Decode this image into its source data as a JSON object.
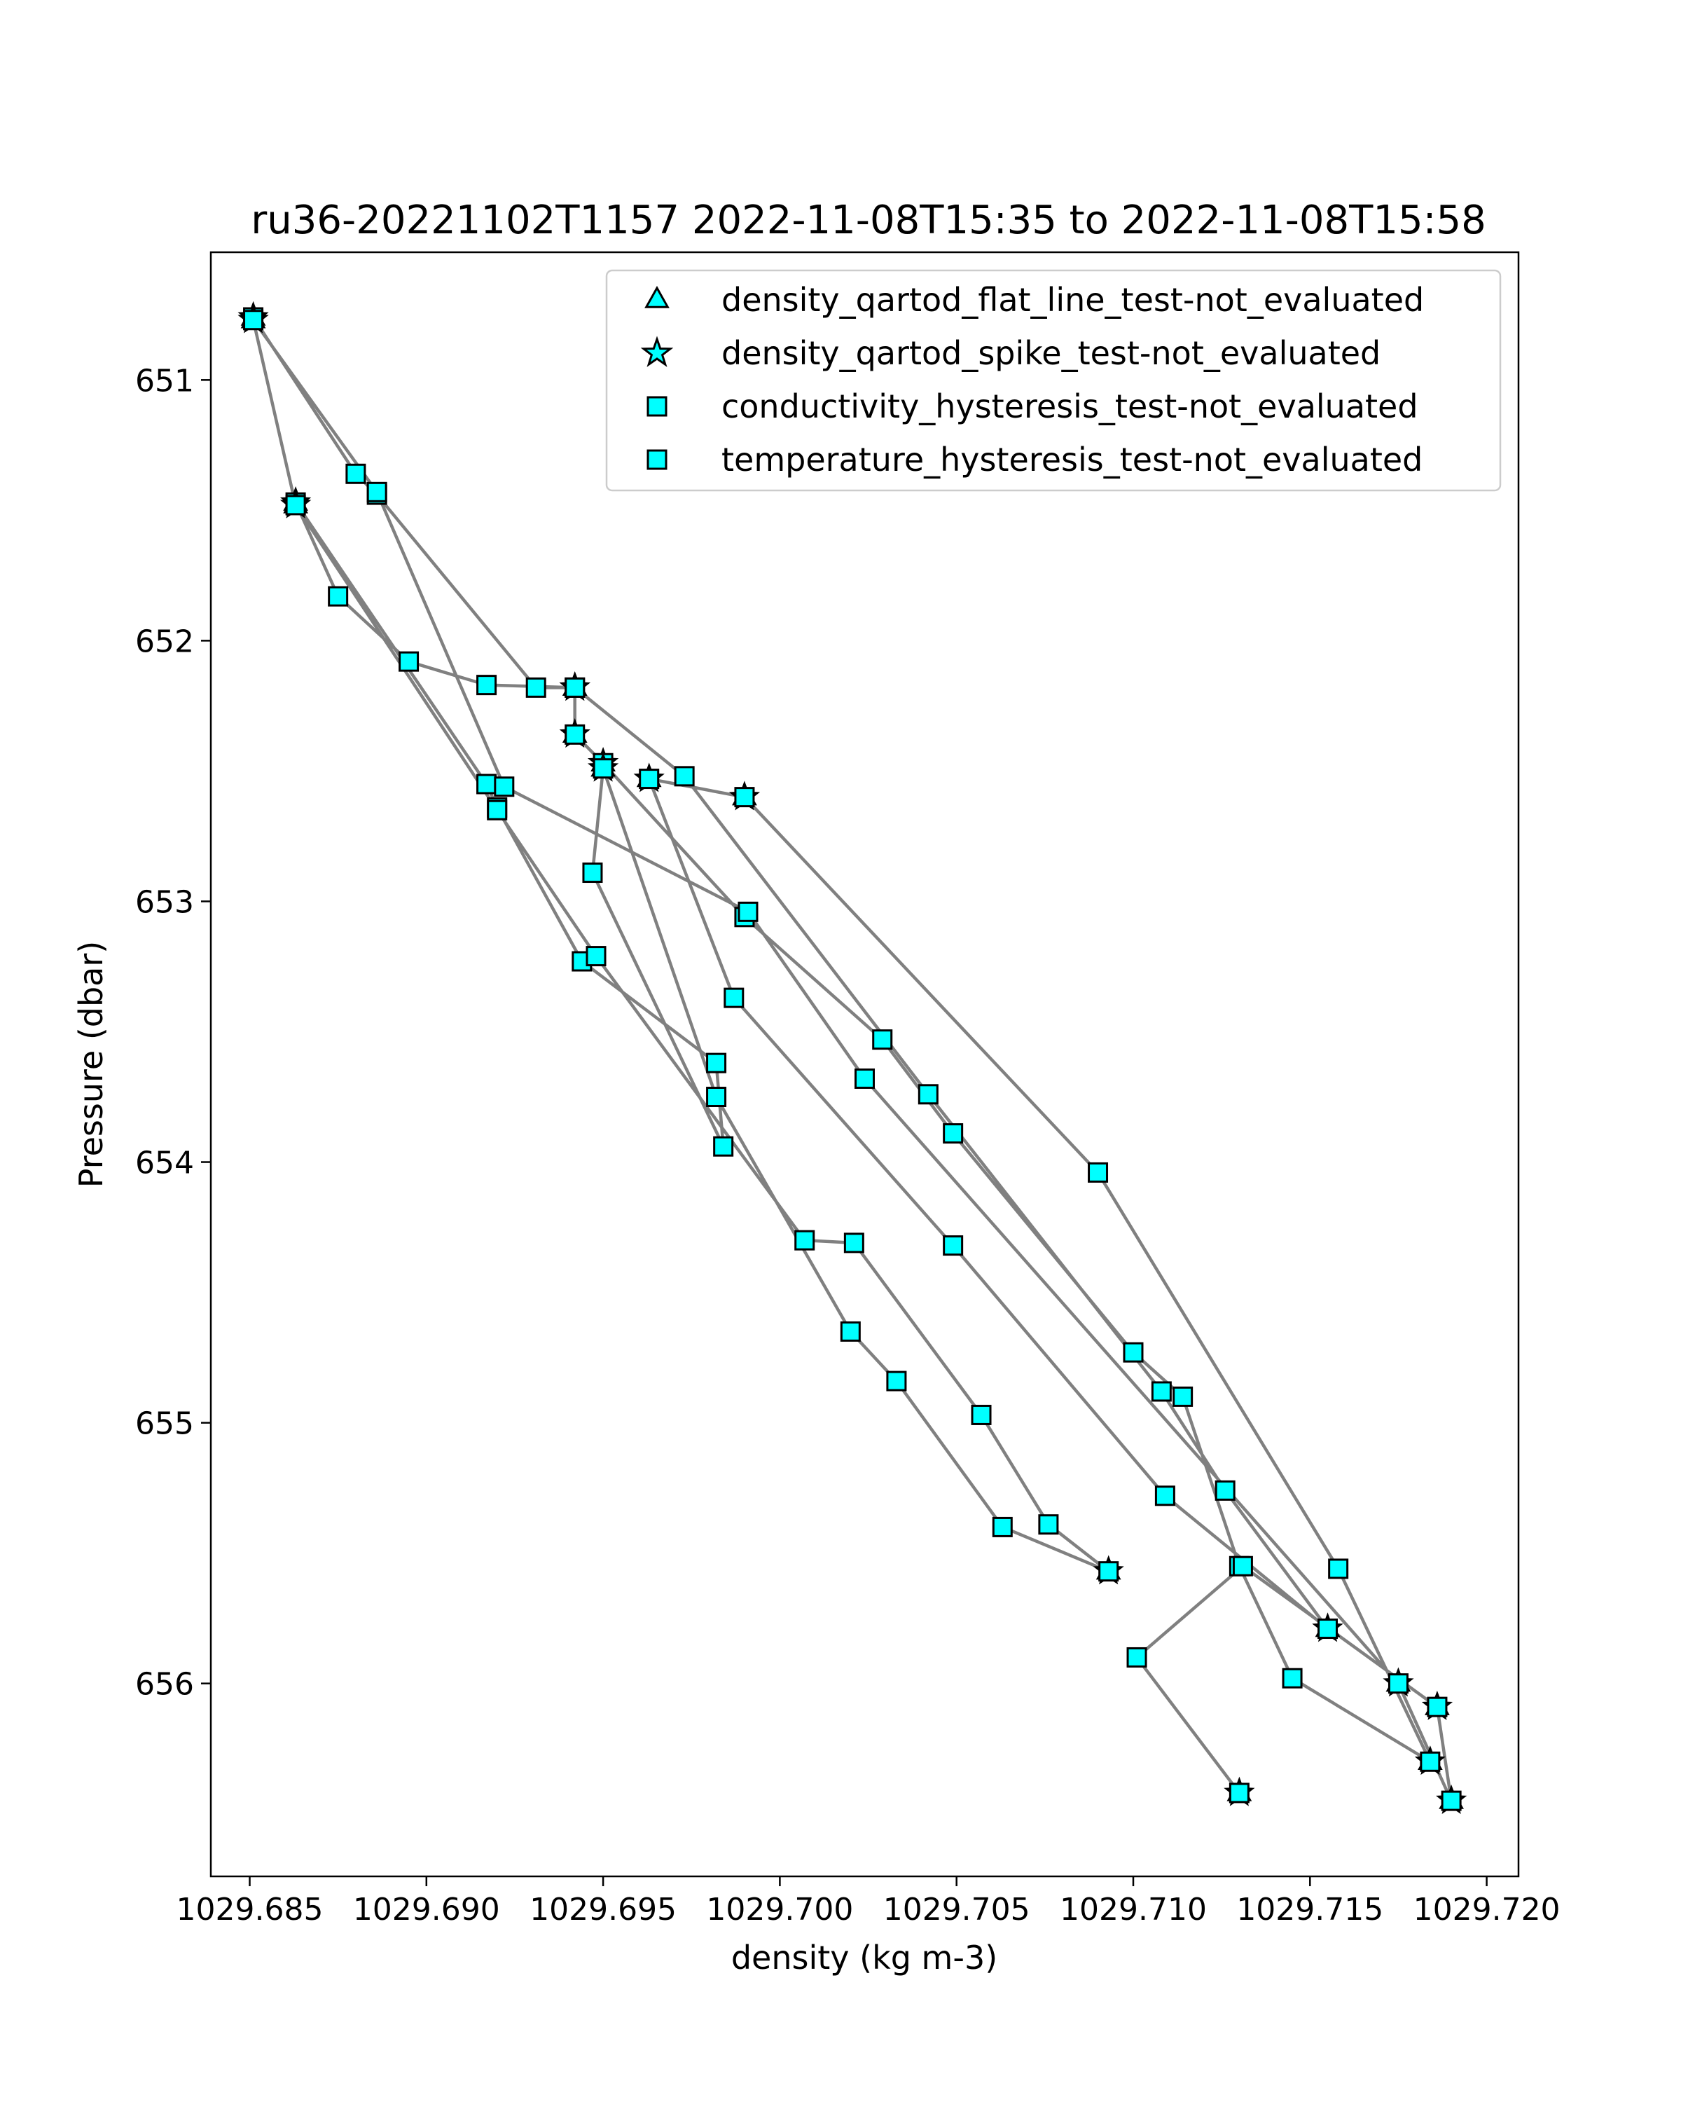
{
  "chart_data": {
    "type": "scatter",
    "title": "ru36-20221102T1157 2022-11-08T15:35 to 2022-11-08T15:58",
    "xlabel": "density (kg m-3)",
    "ylabel": "Pressure (dbar)",
    "xlim": [
      1029.6839,
      1029.7209
    ],
    "ylim": [
      656.74,
      650.51
    ],
    "y_inverted": true,
    "grid": false,
    "legend_position": "upper-right",
    "xticks": [
      1029.685,
      1029.69,
      1029.695,
      1029.7,
      1029.705,
      1029.71,
      1029.715,
      1029.72
    ],
    "xtick_labels": [
      "1029.685",
      "1029.690",
      "1029.695",
      "1029.700",
      "1029.705",
      "1029.710",
      "1029.715",
      "1029.720"
    ],
    "yticks": [
      651,
      652,
      653,
      654,
      655,
      656
    ],
    "ytick_labels": [
      "651",
      "652",
      "653",
      "654",
      "655",
      "656"
    ],
    "line_color": "#808080",
    "marker_fill": "#00ffff",
    "marker_edge": "#000000",
    "legend": [
      {
        "label": "density_qartod_flat_line_test-not_evaluated",
        "marker": "triangle"
      },
      {
        "label": "density_qartod_spike_test-not_evaluated",
        "marker": "star"
      },
      {
        "label": "conductivity_hysteresis_test-not_evaluated",
        "marker": "square"
      },
      {
        "label": "temperature_hysteresis_test-not_evaluated",
        "marker": "square"
      }
    ],
    "profile": [
      {
        "x": 1029.6851,
        "y": 650.76,
        "pt": true
      },
      {
        "x": 1029.688,
        "y": 651.36
      },
      {
        "x": 1029.6886,
        "y": 651.44
      },
      {
        "x": 1029.6931,
        "y": 652.18
      },
      {
        "x": 1029.6942,
        "y": 652.18,
        "pt": true
      },
      {
        "x": 1029.6942,
        "y": 652.36,
        "pt": true
      },
      {
        "x": 1029.695,
        "y": 652.47,
        "pt": true
      },
      {
        "x": 1029.699,
        "y": 653.06
      },
      {
        "x": 1029.7029,
        "y": 653.53
      },
      {
        "x": 1029.7049,
        "y": 653.89
      },
      {
        "x": 1029.71,
        "y": 654.73
      },
      {
        "x": 1029.7114,
        "y": 654.9
      },
      {
        "x": 1029.713,
        "y": 655.55
      },
      {
        "x": 1029.7145,
        "y": 655.98
      },
      {
        "x": 1029.7184,
        "y": 656.3,
        "pt": true
      },
      {
        "x": 1029.7158,
        "y": 655.56
      },
      {
        "x": 1029.709,
        "y": 654.04
      },
      {
        "x": 1029.699,
        "y": 652.6,
        "pt": true
      },
      {
        "x": 1029.6963,
        "y": 652.53,
        "pt": true
      },
      {
        "x": 1029.6987,
        "y": 653.37
      },
      {
        "x": 1029.7049,
        "y": 654.32
      },
      {
        "x": 1029.7109,
        "y": 655.28
      },
      {
        "x": 1029.7155,
        "y": 655.79,
        "pt": true
      },
      {
        "x": 1029.7126,
        "y": 655.26
      },
      {
        "x": 1029.7108,
        "y": 654.88
      },
      {
        "x": 1029.7042,
        "y": 653.74
      },
      {
        "x": 1029.6973,
        "y": 652.52
      },
      {
        "x": 1029.6942,
        "y": 652.18,
        "pt": true
      },
      {
        "x": 1029.6917,
        "y": 652.17
      },
      {
        "x": 1029.6895,
        "y": 652.08
      },
      {
        "x": 1029.6875,
        "y": 651.83
      },
      {
        "x": 1029.6863,
        "y": 651.47,
        "pt": true
      },
      {
        "x": 1029.6917,
        "y": 652.55
      },
      {
        "x": 1029.692,
        "y": 652.64
      },
      {
        "x": 1029.6944,
        "y": 653.23
      },
      {
        "x": 1029.6982,
        "y": 653.62
      },
      {
        "x": 1029.6984,
        "y": 653.94
      },
      {
        "x": 1029.6947,
        "y": 652.89
      },
      {
        "x": 1029.695,
        "y": 652.49,
        "pt": true
      },
      {
        "x": 1029.6982,
        "y": 653.75
      },
      {
        "x": 1029.702,
        "y": 654.65
      },
      {
        "x": 1029.7033,
        "y": 654.84
      },
      {
        "x": 1029.7063,
        "y": 655.4
      },
      {
        "x": 1029.7093,
        "y": 655.57,
        "pt": true
      },
      {
        "x": 1029.7076,
        "y": 655.39
      },
      {
        "x": 1029.7057,
        "y": 654.97
      },
      {
        "x": 1029.7021,
        "y": 654.31
      },
      {
        "x": 1029.7007,
        "y": 654.3
      },
      {
        "x": 1029.6948,
        "y": 653.21
      },
      {
        "x": 1029.692,
        "y": 652.65
      },
      {
        "x": 1029.6863,
        "y": 651.48,
        "pt": true
      },
      {
        "x": 1029.6851,
        "y": 650.77,
        "pt": true
      },
      {
        "x": 1029.6886,
        "y": 651.43
      },
      {
        "x": 1029.6922,
        "y": 652.56
      },
      {
        "x": 1029.6991,
        "y": 653.04
      },
      {
        "x": 1029.7024,
        "y": 653.68
      },
      {
        "x": 1029.7175,
        "y": 656.0,
        "pt": true
      },
      {
        "x": 1029.719,
        "y": 656.45,
        "pt": true
      },
      {
        "x": 1029.7186,
        "y": 656.09,
        "pt": true
      },
      {
        "x": 1029.7131,
        "y": 655.55
      },
      {
        "x": 1029.7101,
        "y": 655.9
      },
      {
        "x": 1029.713,
        "y": 656.42,
        "pt": true
      }
    ]
  }
}
